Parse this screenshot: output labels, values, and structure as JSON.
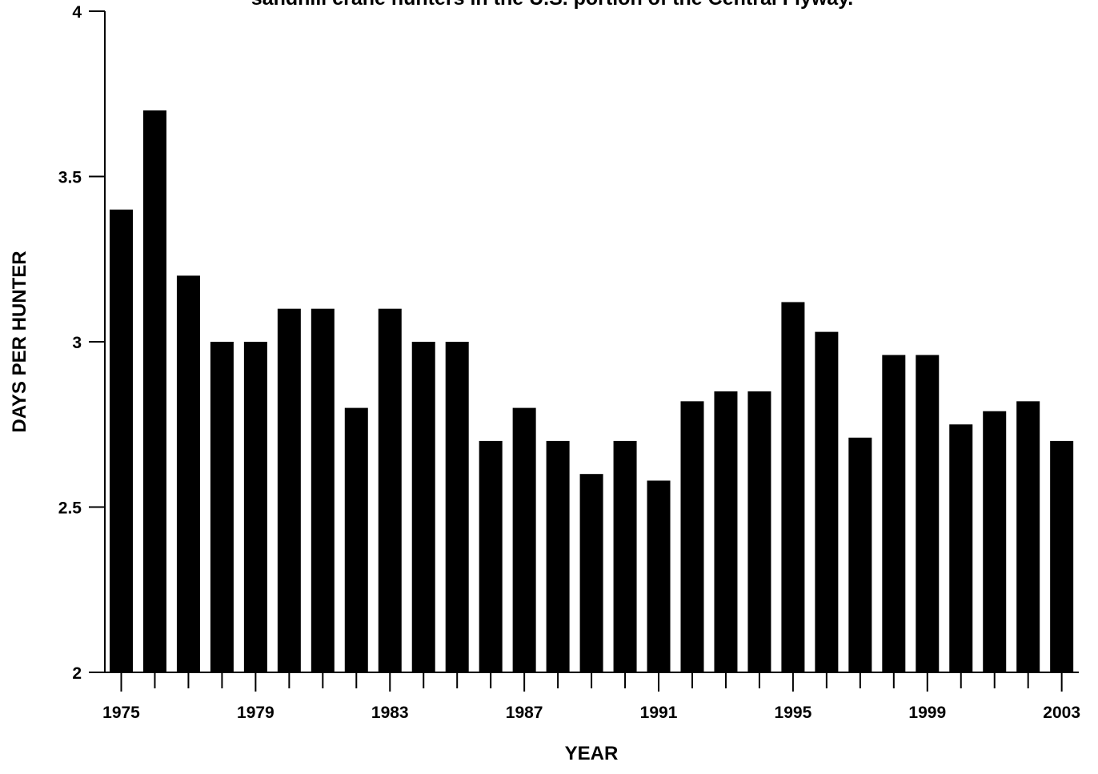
{
  "chart_data": {
    "type": "bar",
    "title": "sandhill crane hunters in the U.S. portion of the Central Flyway.",
    "xlabel": "YEAR",
    "ylabel": "DAYS PER HUNTER",
    "ylim": [
      2,
      4
    ],
    "yticks": [
      2,
      2.5,
      3,
      3.5,
      4
    ],
    "ytick_labels": [
      "2",
      "2.5",
      "3",
      "3.5",
      "4"
    ],
    "xtick_labels": [
      "1975",
      "1979",
      "1983",
      "1987",
      "1991",
      "1995",
      "1999",
      "2003"
    ],
    "grid": false,
    "legend": "none",
    "bar_color": "#000000",
    "categories": [
      "1975",
      "1976",
      "1977",
      "1978",
      "1979",
      "1980",
      "1981",
      "1982",
      "1983",
      "1984",
      "1985",
      "1986",
      "1987",
      "1988",
      "1989",
      "1990",
      "1991",
      "1992",
      "1993",
      "1994",
      "1995",
      "1996",
      "1997",
      "1998",
      "1999",
      "2000",
      "2001",
      "2002",
      "2003"
    ],
    "values": [
      3.4,
      3.7,
      3.2,
      3.0,
      3.0,
      3.1,
      3.1,
      2.8,
      3.1,
      3.0,
      3.0,
      2.7,
      2.8,
      2.7,
      2.6,
      2.7,
      2.58,
      2.82,
      2.85,
      2.85,
      3.12,
      3.03,
      2.71,
      2.96,
      2.96,
      2.75,
      2.79,
      2.82,
      2.7
    ]
  }
}
